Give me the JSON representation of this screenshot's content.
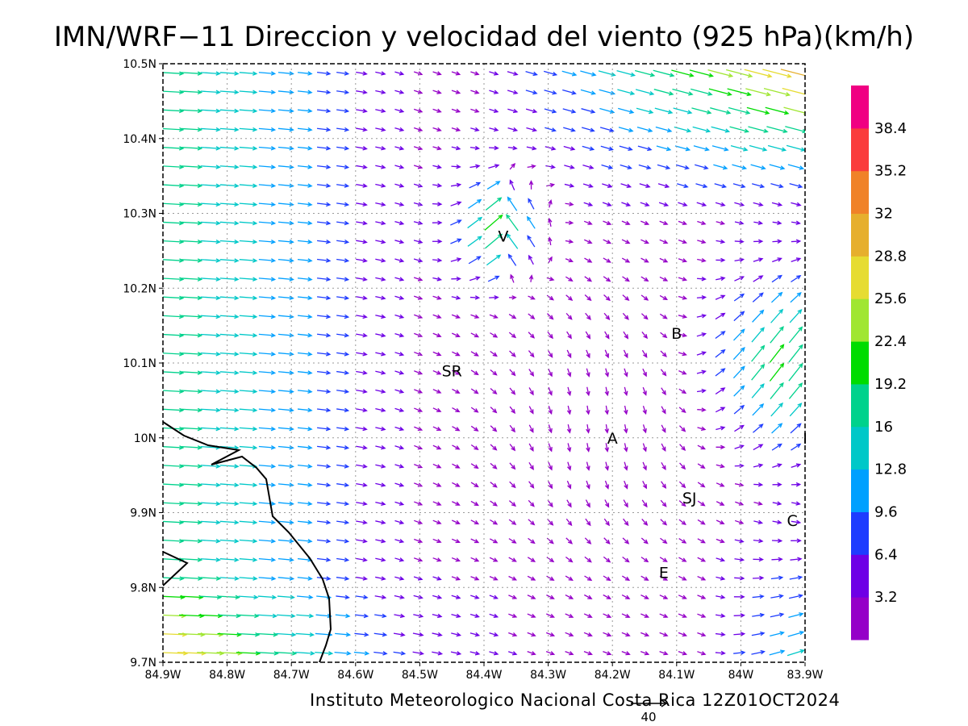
{
  "title": "IMN/WRF−11 Direccion y velocidad del viento (925 hPa)(km/h)",
  "footer": "Instituto Meteorologico Nacional Costa Rica 12Z01OCT2024",
  "reference_vector": {
    "value": "40"
  },
  "map": {
    "lon_range": [
      -84.9,
      -83.9
    ],
    "lat_range": [
      9.7,
      10.5
    ],
    "x_ticks": [
      "84.9W",
      "84.8W",
      "84.7W",
      "84.6W",
      "84.5W",
      "84.4W",
      "84.3W",
      "84.2W",
      "84.1W",
      "84W",
      "83.9W"
    ],
    "y_ticks": [
      "9.7N",
      "9.8N",
      "9.9N",
      "10N",
      "10.1N",
      "10.2N",
      "10.3N",
      "10.4N",
      "10.5N"
    ],
    "grid": "dotted",
    "cities": [
      {
        "label": "V",
        "lon": -84.37,
        "lat": 10.27
      },
      {
        "label": "SR",
        "lon": -84.45,
        "lat": 10.09
      },
      {
        "label": "B",
        "lon": -84.1,
        "lat": 10.14
      },
      {
        "label": "A",
        "lon": -84.2,
        "lat": 10.0
      },
      {
        "label": "SJ",
        "lon": -84.08,
        "lat": 9.92
      },
      {
        "label": "C",
        "lon": -83.92,
        "lat": 9.89
      },
      {
        "label": "E",
        "lon": -84.12,
        "lat": 9.82
      },
      {
        "label": "I",
        "lon": -83.9,
        "lat": 10.0
      }
    ]
  },
  "colorbar": {
    "labels": [
      "3.2",
      "6.4",
      "9.6",
      "12.8",
      "16",
      "19.2",
      "22.4",
      "25.6",
      "28.8",
      "32",
      "35.2",
      "38.4"
    ],
    "colors": [
      "#9500c8",
      "#6e00e6",
      "#1e3cff",
      "#00a0ff",
      "#00c8c8",
      "#00d28c",
      "#00dc00",
      "#a0e632",
      "#e6dc32",
      "#e6af2d",
      "#f08228",
      "#fa3c3c",
      "#f00082"
    ]
  }
}
